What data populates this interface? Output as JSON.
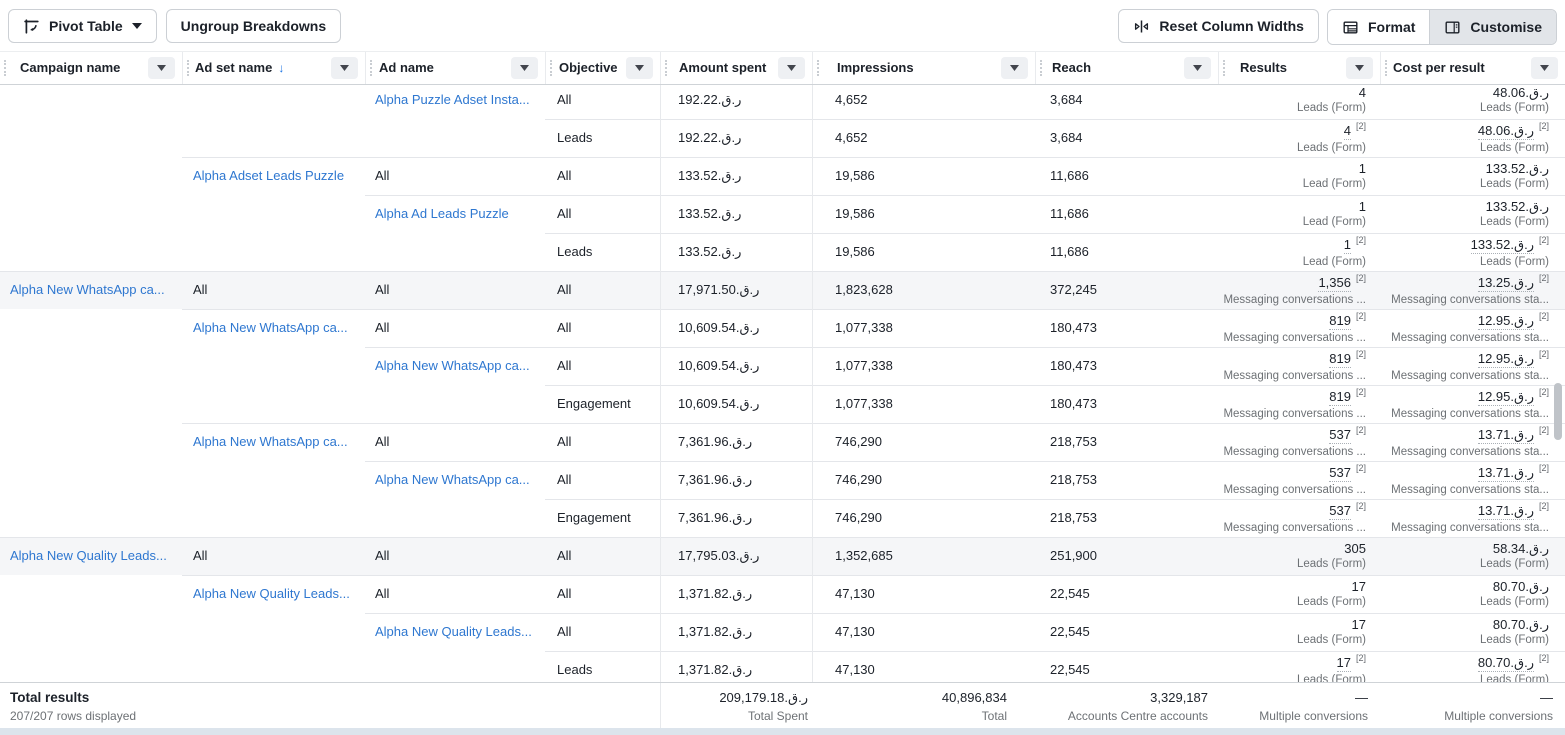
{
  "toolbar": {
    "pivot_table_label": "Pivot Table",
    "ungroup_label": "Ungroup Breakdowns",
    "reset_label": "Reset Column Widths",
    "format_label": "Format",
    "customise_label": "Customise"
  },
  "icons": {
    "sort_desc": "↓",
    "dropdown_caret": "caret-down",
    "footnote_marker": "[2]"
  },
  "currency_symbol": "ر.ق.",
  "columns": [
    {
      "label": "Campaign name"
    },
    {
      "label": "Ad set name",
      "sort": "desc"
    },
    {
      "label": "Ad name"
    },
    {
      "label": "Objective"
    },
    {
      "label": "Amount spent"
    },
    {
      "label": "Impressions"
    },
    {
      "label": "Reach"
    },
    {
      "label": "Results"
    },
    {
      "label": "Cost per result"
    }
  ],
  "rows": [
    {
      "level": "ad",
      "ad": "Alpha Puzzle Adset Insta...",
      "objective": "All",
      "spent": "192.22",
      "impressions": "4,652",
      "reach": "3,684",
      "results": "4",
      "results_sub": "Leads (Form)",
      "results_fn": false,
      "cost": "48.06",
      "cost_sub": "Leads (Form)",
      "cost_fn": false,
      "highlight": false
    },
    {
      "level": "objective",
      "objective": "Leads",
      "spent": "192.22",
      "impressions": "4,652",
      "reach": "3,684",
      "results": "4",
      "results_sub": "Leads (Form)",
      "results_fn": true,
      "cost": "48.06",
      "cost_sub": "Leads (Form)",
      "cost_fn": true,
      "highlight": false
    },
    {
      "level": "adset",
      "adset": "Alpha Adset Leads Puzzle",
      "ad": "All",
      "objective": "All",
      "spent": "133.52",
      "impressions": "19,586",
      "reach": "11,686",
      "results": "1",
      "results_sub": "Lead (Form)",
      "results_fn": false,
      "cost": "133.52",
      "cost_sub": "Leads (Form)",
      "cost_fn": false,
      "highlight": false
    },
    {
      "level": "ad",
      "ad": "Alpha Ad Leads Puzzle",
      "objective": "All",
      "spent": "133.52",
      "impressions": "19,586",
      "reach": "11,686",
      "results": "1",
      "results_sub": "Lead (Form)",
      "results_fn": false,
      "cost": "133.52",
      "cost_sub": "Leads (Form)",
      "cost_fn": false,
      "highlight": false
    },
    {
      "level": "objective",
      "objective": "Leads",
      "spent": "133.52",
      "impressions": "19,586",
      "reach": "11,686",
      "results": "1",
      "results_sub": "Lead (Form)",
      "results_fn": true,
      "cost": "133.52",
      "cost_sub": "Leads (Form)",
      "cost_fn": true,
      "highlight": false
    },
    {
      "level": "campaign",
      "campaign": "Alpha New WhatsApp ca...",
      "adset": "All",
      "ad": "All",
      "objective": "All",
      "spent": "17,971.50",
      "impressions": "1,823,628",
      "reach": "372,245",
      "results": "1,356",
      "results_sub": "Messaging conversations ...",
      "results_fn": true,
      "cost": "13.25",
      "cost_sub": "Messaging conversations sta...",
      "cost_fn": true,
      "highlight": true
    },
    {
      "level": "adset",
      "adset": "Alpha New WhatsApp ca...",
      "ad": "All",
      "objective": "All",
      "spent": "10,609.54",
      "impressions": "1,077,338",
      "reach": "180,473",
      "results": "819",
      "results_sub": "Messaging conversations ...",
      "results_fn": true,
      "cost": "12.95",
      "cost_sub": "Messaging conversations sta...",
      "cost_fn": true,
      "highlight": false
    },
    {
      "level": "ad",
      "ad": "Alpha New WhatsApp ca...",
      "objective": "All",
      "spent": "10,609.54",
      "impressions": "1,077,338",
      "reach": "180,473",
      "results": "819",
      "results_sub": "Messaging conversations ...",
      "results_fn": true,
      "cost": "12.95",
      "cost_sub": "Messaging conversations sta...",
      "cost_fn": true,
      "highlight": false
    },
    {
      "level": "objective",
      "objective": "Engagement",
      "spent": "10,609.54",
      "impressions": "1,077,338",
      "reach": "180,473",
      "results": "819",
      "results_sub": "Messaging conversations ...",
      "results_fn": true,
      "cost": "12.95",
      "cost_sub": "Messaging conversations sta...",
      "cost_fn": true,
      "highlight": false
    },
    {
      "level": "adset",
      "adset": "Alpha New WhatsApp ca...",
      "ad": "All",
      "objective": "All",
      "spent": "7,361.96",
      "impressions": "746,290",
      "reach": "218,753",
      "results": "537",
      "results_sub": "Messaging conversations ...",
      "results_fn": true,
      "cost": "13.71",
      "cost_sub": "Messaging conversations sta...",
      "cost_fn": true,
      "highlight": false
    },
    {
      "level": "ad",
      "ad": "Alpha New WhatsApp ca...",
      "objective": "All",
      "spent": "7,361.96",
      "impressions": "746,290",
      "reach": "218,753",
      "results": "537",
      "results_sub": "Messaging conversations ...",
      "results_fn": true,
      "cost": "13.71",
      "cost_sub": "Messaging conversations sta...",
      "cost_fn": true,
      "highlight": false
    },
    {
      "level": "objective",
      "objective": "Engagement",
      "spent": "7,361.96",
      "impressions": "746,290",
      "reach": "218,753",
      "results": "537",
      "results_sub": "Messaging conversations ...",
      "results_fn": true,
      "cost": "13.71",
      "cost_sub": "Messaging conversations sta...",
      "cost_fn": true,
      "highlight": false
    },
    {
      "level": "campaign",
      "campaign": "Alpha New Quality Leads...",
      "adset": "All",
      "ad": "All",
      "objective": "All",
      "spent": "17,795.03",
      "impressions": "1,352,685",
      "reach": "251,900",
      "results": "305",
      "results_sub": "Leads (Form)",
      "results_fn": false,
      "cost": "58.34",
      "cost_sub": "Leads (Form)",
      "cost_fn": false,
      "highlight": true
    },
    {
      "level": "adset",
      "adset": "Alpha New Quality Leads...",
      "ad": "All",
      "objective": "All",
      "spent": "1,371.82",
      "impressions": "47,130",
      "reach": "22,545",
      "results": "17",
      "results_sub": "Leads (Form)",
      "results_fn": false,
      "cost": "80.70",
      "cost_sub": "Leads (Form)",
      "cost_fn": false,
      "highlight": false
    },
    {
      "level": "ad",
      "ad": "Alpha New Quality Leads...",
      "objective": "All",
      "spent": "1,371.82",
      "impressions": "47,130",
      "reach": "22,545",
      "results": "17",
      "results_sub": "Leads (Form)",
      "results_fn": false,
      "cost": "80.70",
      "cost_sub": "Leads (Form)",
      "cost_fn": false,
      "highlight": false
    },
    {
      "level": "objective",
      "objective": "Leads",
      "spent": "1,371.82",
      "impressions": "47,130",
      "reach": "22,545",
      "results": "17",
      "results_sub": "Leads (Form)",
      "results_fn": true,
      "cost": "80.70",
      "cost_sub": "Leads (Form)",
      "cost_fn": true,
      "highlight": false
    }
  ],
  "footer": {
    "title": "Total results",
    "rows_displayed": "207/207 rows displayed",
    "spent_total": "209,179.18",
    "spent_label": "Total Spent",
    "impressions_total": "40,896,834",
    "impressions_label": "Total",
    "reach_total": "3,329,187",
    "reach_label": "Accounts Centre accounts",
    "results_total": "—",
    "results_label": "Multiple conversions",
    "cost_total": "—",
    "cost_label": "Multiple conversions"
  }
}
